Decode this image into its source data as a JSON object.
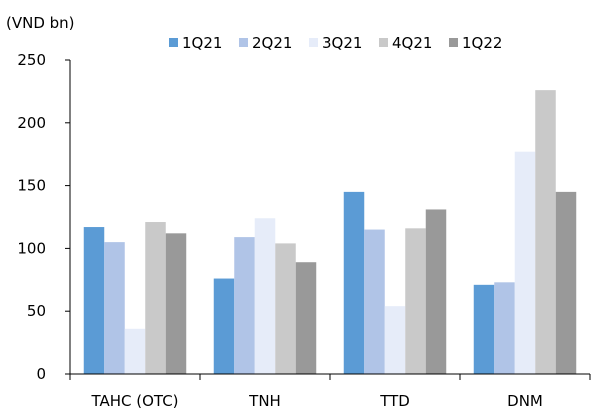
{
  "chart_data": {
    "type": "bar",
    "title": "",
    "ylabel": "(VND bn)",
    "xlabel": "",
    "categories": [
      "TAHC (OTC)",
      "TNH",
      "TTD",
      "DNM"
    ],
    "series": [
      {
        "name": "1Q21",
        "color": "#5b9bd5",
        "values": [
          117,
          76,
          145,
          71
        ]
      },
      {
        "name": "2Q21",
        "color": "#b0c4e7",
        "values": [
          105,
          109,
          115,
          73
        ]
      },
      {
        "name": "3Q21",
        "color": "#e6ecf9",
        "values": [
          36,
          124,
          54,
          177
        ]
      },
      {
        "name": "4Q21",
        "color": "#c9c9c9",
        "values": [
          121,
          104,
          116,
          226
        ]
      },
      {
        "name": "1Q22",
        "color": "#999999",
        "values": [
          112,
          89,
          131,
          145
        ]
      }
    ],
    "ylim": [
      0,
      250
    ],
    "yticks": [
      0,
      50,
      100,
      150,
      200,
      250
    ],
    "grid": false,
    "legend_position": "top"
  }
}
